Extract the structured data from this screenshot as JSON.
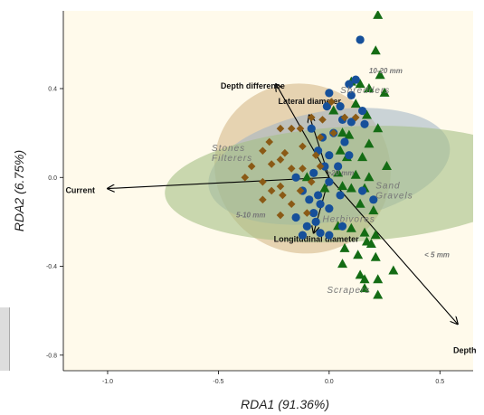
{
  "chart_data": {
    "type": "scatter",
    "xlabel": "RDA1 (91.36%)",
    "ylabel": "RDA2 (6.75%)",
    "xlim": [
      -1.2,
      0.65
    ],
    "ylim": [
      -0.87,
      0.75
    ],
    "xticks": [
      -1.0,
      -0.5,
      0.0,
      0.5
    ],
    "yticks": [
      -0.8,
      -0.4,
      0.0,
      0.4
    ],
    "xtick_labels": [
      "-1.0",
      "-0.5",
      "0.0",
      "0.5"
    ],
    "ytick_labels": [
      "-0.8",
      "-0.4",
      "0.0",
      "0.4"
    ],
    "grid": false,
    "background_color": "#fffaeb",
    "ellipses": [
      {
        "group": "diamond",
        "cx": -0.12,
        "cy": 0.04,
        "rx": 0.38,
        "ry": 0.4,
        "angle": 115,
        "color": "#c8a36a",
        "opacity": 0.45
      },
      {
        "group": "circle",
        "cx": 0.0,
        "cy": 0.05,
        "rx": 0.25,
        "ry": 0.55,
        "angle": 80,
        "color": "#9fb2c4",
        "opacity": 0.55
      },
      {
        "group": "triangle",
        "cx": 0.1,
        "cy": -0.03,
        "rx": 0.26,
        "ry": 0.84,
        "angle": 87,
        "color": "#a5bf86",
        "opacity": 0.6
      }
    ],
    "series": [
      {
        "marker": "triangle",
        "color": "#146c14",
        "points": [
          [
            0.22,
            0.73
          ],
          [
            0.21,
            0.57
          ],
          [
            0.23,
            0.46
          ],
          [
            0.1,
            0.43
          ],
          [
            0.14,
            0.42
          ],
          [
            0.18,
            0.4
          ],
          [
            0.25,
            0.38
          ],
          [
            0.02,
            0.3
          ],
          [
            0.12,
            0.33
          ],
          [
            0.17,
            0.28
          ],
          [
            0.22,
            0.22
          ],
          [
            0.06,
            0.2
          ],
          [
            0.09,
            0.19
          ],
          [
            0.18,
            0.15
          ],
          [
            0.05,
            0.12
          ],
          [
            0.08,
            0.09
          ],
          [
            0.15,
            0.09
          ],
          [
            0.26,
            0.05
          ],
          [
            0.12,
            0.01
          ],
          [
            0.18,
            0.0
          ],
          [
            0.06,
            -0.04
          ],
          [
            0.16,
            -0.05
          ],
          [
            0.14,
            -0.12
          ],
          [
            0.2,
            -0.15
          ],
          [
            0.04,
            -0.22
          ],
          [
            0.1,
            -0.23
          ],
          [
            0.16,
            -0.25
          ],
          [
            0.21,
            -0.26
          ],
          [
            0.17,
            -0.29
          ],
          [
            0.19,
            -0.3
          ],
          [
            0.07,
            -0.32
          ],
          [
            0.13,
            -0.35
          ],
          [
            0.21,
            -0.36
          ],
          [
            0.06,
            -0.39
          ],
          [
            0.14,
            -0.44
          ],
          [
            0.29,
            -0.42
          ],
          [
            0.16,
            -0.46
          ],
          [
            0.22,
            -0.46
          ],
          [
            0.16,
            -0.5
          ],
          [
            0.22,
            -0.53
          ],
          [
            0.1,
            -0.05
          ],
          [
            0.04,
            0.02
          ],
          [
            -0.1,
            0.0
          ],
          [
            -0.02,
            -0.05
          ]
        ]
      },
      {
        "marker": "circle",
        "color": "#16509a",
        "points": [
          [
            0.14,
            0.62
          ],
          [
            0.12,
            0.44
          ],
          [
            0.09,
            0.42
          ],
          [
            0.0,
            0.38
          ],
          [
            0.1,
            0.37
          ],
          [
            -0.01,
            0.32
          ],
          [
            0.05,
            0.32
          ],
          [
            0.15,
            0.3
          ],
          [
            0.06,
            0.26
          ],
          [
            0.1,
            0.25
          ],
          [
            0.16,
            0.24
          ],
          [
            -0.08,
            0.22
          ],
          [
            0.02,
            0.2
          ],
          [
            -0.03,
            0.18
          ],
          [
            0.07,
            0.16
          ],
          [
            -0.05,
            0.12
          ],
          [
            0.0,
            0.1
          ],
          [
            0.09,
            0.1
          ],
          [
            -0.02,
            0.05
          ],
          [
            0.04,
            0.05
          ],
          [
            -0.15,
            0.0
          ],
          [
            -0.07,
            0.02
          ],
          [
            0.0,
            -0.02
          ],
          [
            -0.12,
            -0.06
          ],
          [
            -0.05,
            -0.08
          ],
          [
            0.05,
            -0.08
          ],
          [
            -0.09,
            -0.1
          ],
          [
            -0.04,
            -0.12
          ],
          [
            0.0,
            -0.14
          ],
          [
            -0.07,
            -0.16
          ],
          [
            -0.06,
            -0.2
          ],
          [
            -0.1,
            -0.22
          ],
          [
            -0.04,
            -0.25
          ],
          [
            0.0,
            -0.26
          ],
          [
            0.06,
            -0.22
          ],
          [
            0.15,
            -0.06
          ],
          [
            0.2,
            -0.1
          ],
          [
            -0.15,
            -0.18
          ],
          [
            -0.12,
            -0.26
          ]
        ]
      },
      {
        "marker": "diamond",
        "color": "#8a5a16",
        "points": [
          [
            0.01,
            0.34
          ],
          [
            -0.08,
            0.27
          ],
          [
            -0.03,
            0.26
          ],
          [
            0.07,
            0.27
          ],
          [
            0.12,
            0.27
          ],
          [
            -0.17,
            0.22
          ],
          [
            -0.13,
            0.22
          ],
          [
            0.02,
            0.2
          ],
          [
            -0.22,
            0.22
          ],
          [
            -0.04,
            0.18
          ],
          [
            -0.27,
            0.16
          ],
          [
            -0.12,
            0.14
          ],
          [
            -0.3,
            0.12
          ],
          [
            -0.2,
            0.11
          ],
          [
            -0.06,
            0.1
          ],
          [
            -0.22,
            0.08
          ],
          [
            -0.26,
            0.06
          ],
          [
            -0.35,
            0.05
          ],
          [
            -0.17,
            0.04
          ],
          [
            -0.38,
            0.0
          ],
          [
            -0.3,
            -0.02
          ],
          [
            -0.22,
            -0.04
          ],
          [
            -0.26,
            -0.06
          ],
          [
            -0.13,
            -0.06
          ],
          [
            -0.21,
            -0.08
          ],
          [
            -0.3,
            -0.1
          ],
          [
            -0.17,
            -0.12
          ],
          [
            -0.1,
            -0.16
          ],
          [
            -0.22,
            -0.17
          ],
          [
            -0.04,
            0.05
          ],
          [
            -0.08,
            -0.02
          ],
          [
            -0.12,
            0.04
          ]
        ]
      }
    ],
    "vectors": [
      {
        "label": "Current",
        "x": -1.0,
        "y": -0.05,
        "label_x": -1.19,
        "label_y": -0.07
      },
      {
        "label": "Depth difference",
        "x": -0.24,
        "y": 0.42,
        "label_x": -0.49,
        "label_y": 0.4
      },
      {
        "label": "Lateral diameter",
        "x": -0.09,
        "y": 0.28,
        "label_x": -0.23,
        "label_y": 0.33
      },
      {
        "label": "Longitudinal diameter",
        "x": -0.07,
        "y": -0.25,
        "label_x": -0.25,
        "label_y": -0.29
      },
      {
        "label": "Depth",
        "x": 0.58,
        "y": -0.66,
        "label_x": 0.56,
        "label_y": -0.79
      }
    ],
    "group_labels": [
      {
        "lines": [
          "Stones",
          "Filterers"
        ],
        "x": -0.53,
        "y": 0.12
      },
      {
        "lines": [
          "Shredders"
        ],
        "x": 0.05,
        "y": 0.38
      },
      {
        "lines": [
          "Sand",
          "Gravels"
        ],
        "x": 0.21,
        "y": -0.05
      },
      {
        "lines": [
          "Herbivores"
        ],
        "x": -0.03,
        "y": -0.2
      },
      {
        "lines": [
          "Scrapers"
        ],
        "x": -0.01,
        "y": -0.52
      }
    ],
    "size_labels": [
      {
        "label": "10-20 mm",
        "x": 0.18,
        "y": 0.47
      },
      {
        "label": ">20 mm",
        "x": -0.01,
        "y": 0.01
      },
      {
        "label": "5-10 mm",
        "x": -0.42,
        "y": -0.18
      },
      {
        "label": "< 5 mm",
        "x": 0.43,
        "y": -0.36
      }
    ]
  }
}
